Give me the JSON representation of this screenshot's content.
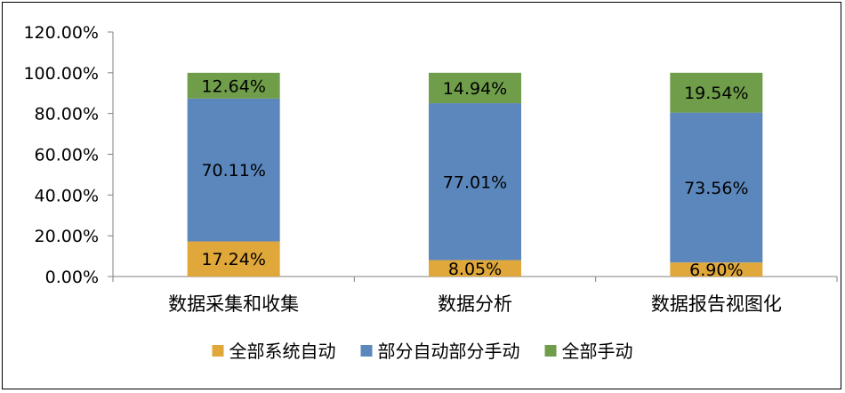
{
  "chart_data": {
    "type": "bar",
    "stacked": true,
    "categories": [
      "数据采集和收集",
      "数据分析",
      "数据报告视图化"
    ],
    "series": [
      {
        "name": "全部系统自动",
        "color": "#e0a83a",
        "values": [
          17.24,
          8.05,
          6.9
        ],
        "labels": [
          "17.24%",
          "8.05%",
          "6.90%"
        ]
      },
      {
        "name": "部分自动部分手动",
        "color": "#5b87bd",
        "values": [
          70.11,
          77.01,
          73.56
        ],
        "labels": [
          "70.11%",
          "77.01%",
          "73.56%"
        ]
      },
      {
        "name": "全部手动",
        "color": "#6f9d4a",
        "values": [
          12.64,
          14.94,
          19.54
        ],
        "labels": [
          "12.64%",
          "14.94%",
          "19.54%"
        ]
      }
    ],
    "ylim": [
      0,
      120
    ],
    "yticks": [
      0,
      20,
      40,
      60,
      80,
      100,
      120
    ],
    "ytick_labels": [
      "0.00%",
      "20.00%",
      "40.00%",
      "60.00%",
      "80.00%",
      "100.00%",
      "120.00%"
    ],
    "grid": false,
    "legend_position": "bottom"
  }
}
